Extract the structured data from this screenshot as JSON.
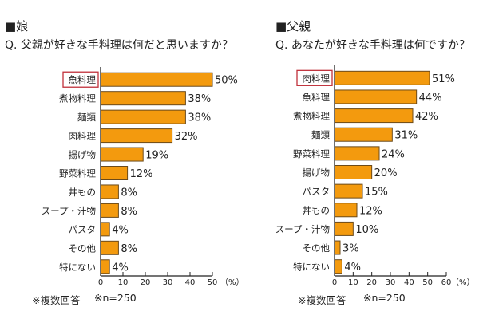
{
  "chart_data": [
    {
      "type": "bar",
      "heading": "■娘",
      "title": "Q. 父親が好きな手料理は何だと思いますか？",
      "categories": [
        "魚料理",
        "煮物料理",
        "麺類",
        "肉料理",
        "揚げ物",
        "野菜料理",
        "丼もの",
        "スープ・汁物",
        "パスタ",
        "その他",
        "特にない"
      ],
      "values": [
        50,
        38,
        38,
        32,
        19,
        12,
        8,
        8,
        4,
        8,
        4
      ],
      "value_labels": [
        "50%",
        "38%",
        "38%",
        "32%",
        "19%",
        "12%",
        "8%",
        "8%",
        "4%",
        "8%",
        "4%"
      ],
      "highlighted": "魚料理",
      "xlim": [
        0,
        50
      ],
      "xticks": [
        "0",
        "10",
        "20",
        "30",
        "40",
        "50"
      ],
      "xunit": "（%）",
      "notes": [
        "※複数回答",
        "※n=250"
      ]
    },
    {
      "type": "bar",
      "heading": "■父親",
      "title": "Q. あなたが好きな手料理は何ですか？",
      "categories": [
        "肉料理",
        "魚料理",
        "煮物料理",
        "麺類",
        "野菜料理",
        "揚げ物",
        "パスタ",
        "丼もの",
        "スープ・汁物",
        "その他",
        "特にない"
      ],
      "values": [
        51,
        44,
        42,
        31,
        24,
        20,
        15,
        12,
        10,
        3,
        4
      ],
      "value_labels": [
        "51%",
        "44%",
        "42%",
        "31%",
        "24%",
        "20%",
        "15%",
        "12%",
        "10%",
        "3%",
        "4%"
      ],
      "highlighted": "肉料理",
      "xlim": [
        0,
        60
      ],
      "xticks": [
        "0",
        "10",
        "20",
        "30",
        "40",
        "50",
        "60"
      ],
      "xunit": "（%）",
      "notes": [
        "※複数回答",
        "※n=250"
      ]
    }
  ],
  "colors": {
    "bar": "#f39a0e",
    "bar_border": "#6b4a1a",
    "highlight": "#c0303a"
  }
}
